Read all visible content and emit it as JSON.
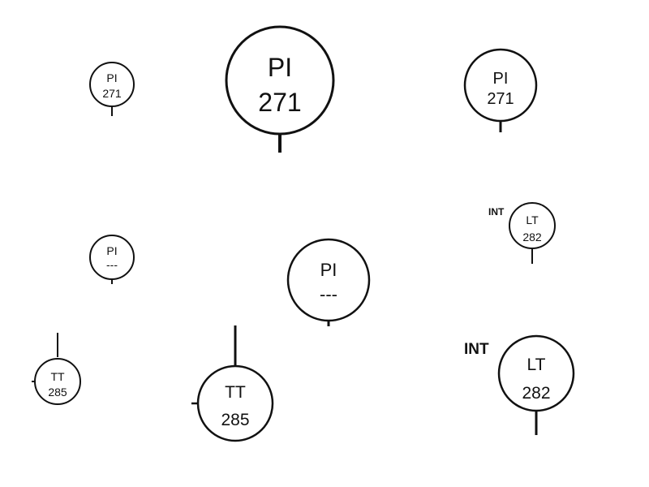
{
  "colors": {
    "line": "#111111",
    "background": "#ffffff"
  },
  "instruments": [
    {
      "function": "PI",
      "number": "271"
    },
    {
      "function": "PI",
      "number": "271"
    },
    {
      "function": "PI",
      "number": "271"
    },
    {
      "function": "PI",
      "number": "---"
    },
    {
      "function": "PI",
      "number": "---"
    },
    {
      "function": "LT",
      "number": "282",
      "note": "INT"
    },
    {
      "function": "TT",
      "number": "285"
    },
    {
      "function": "TT",
      "number": "285"
    },
    {
      "function": "LT",
      "number": "282",
      "note": "INT"
    }
  ]
}
